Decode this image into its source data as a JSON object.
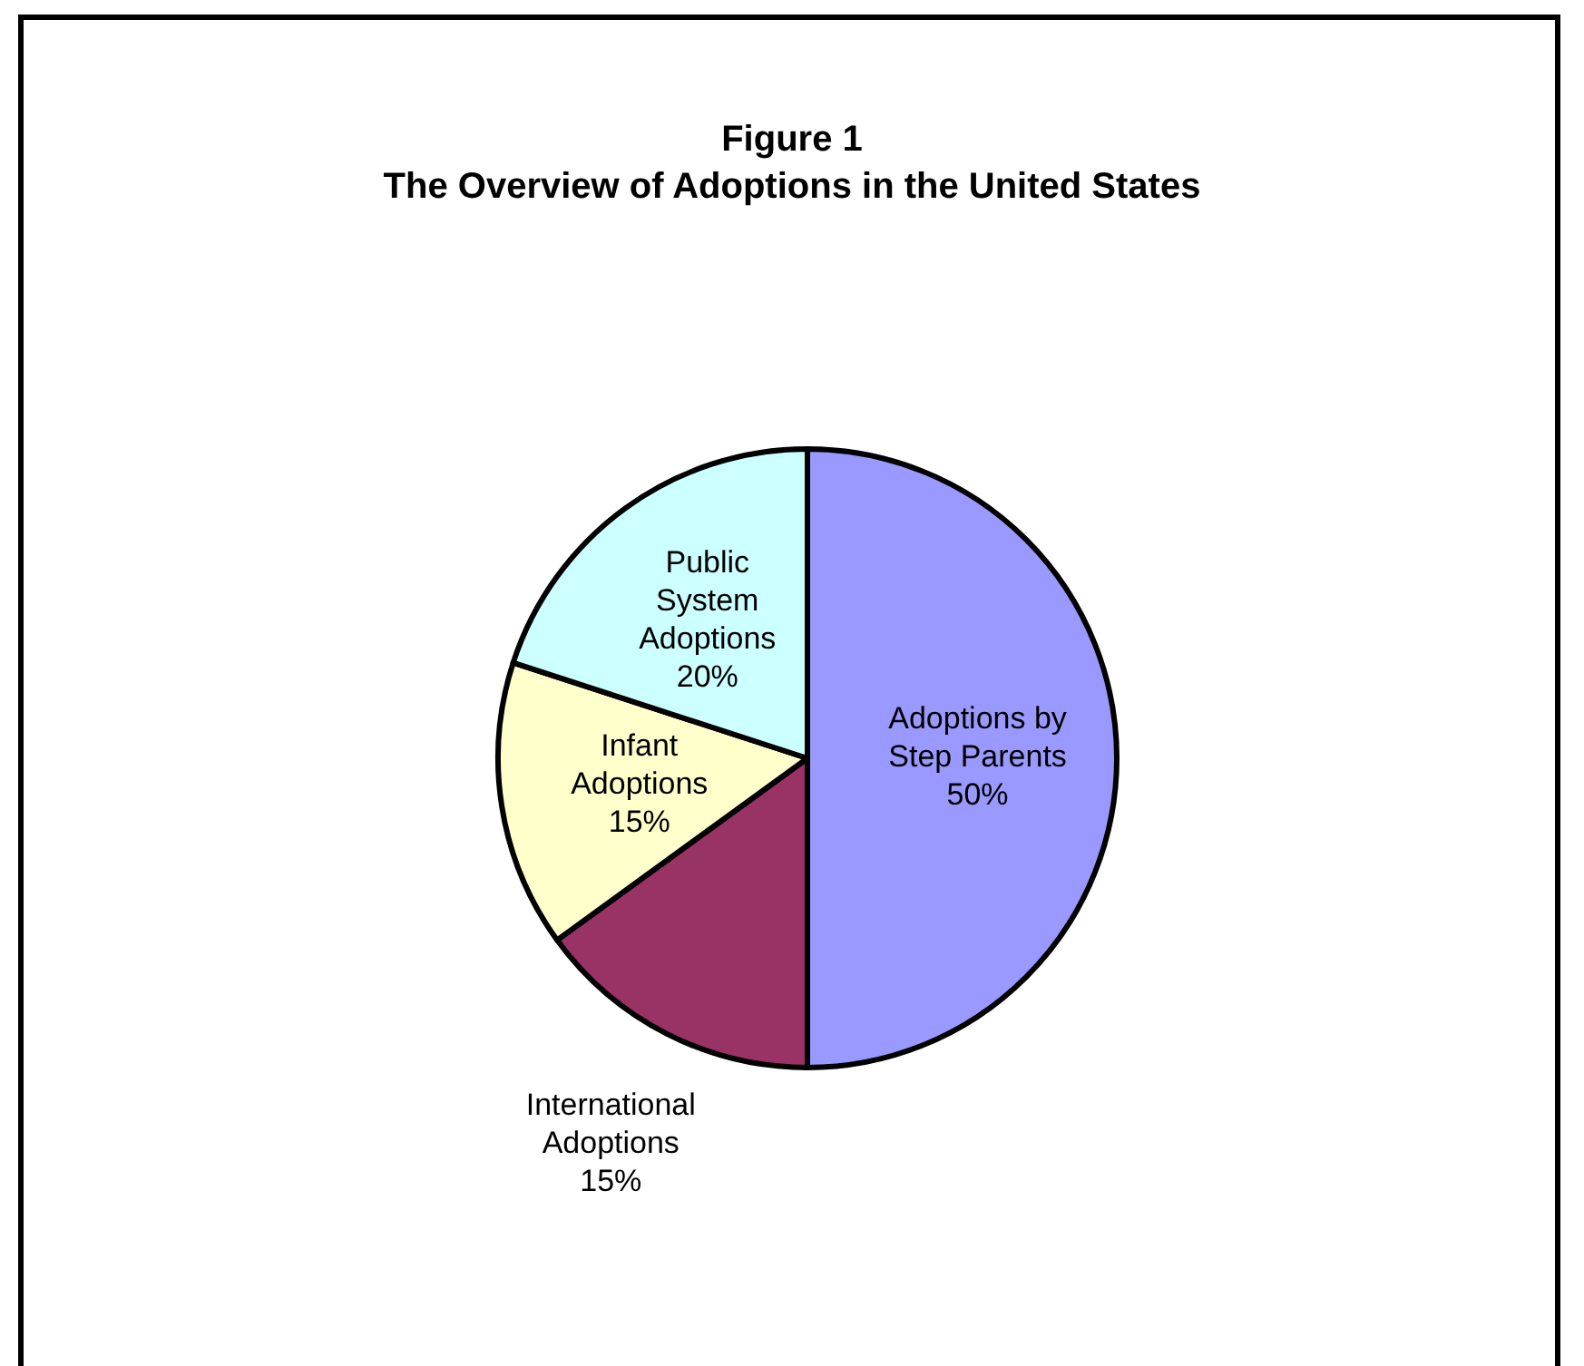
{
  "chart_data": {
    "type": "pie",
    "title": "Figure 1",
    "subtitle": "The Overview of Adoptions in the United States",
    "categories": [
      "Adoptions by Step Parents",
      "International Adoptions",
      "Infant Adoptions",
      "Public System Adoptions"
    ],
    "values": [
      50,
      15,
      15,
      20
    ],
    "colors": [
      "#9999ff",
      "#993366",
      "#ffffcc",
      "#ccffff"
    ],
    "value_labels": [
      "50%",
      "15%",
      "15%",
      "20%"
    ],
    "legend": false
  }
}
